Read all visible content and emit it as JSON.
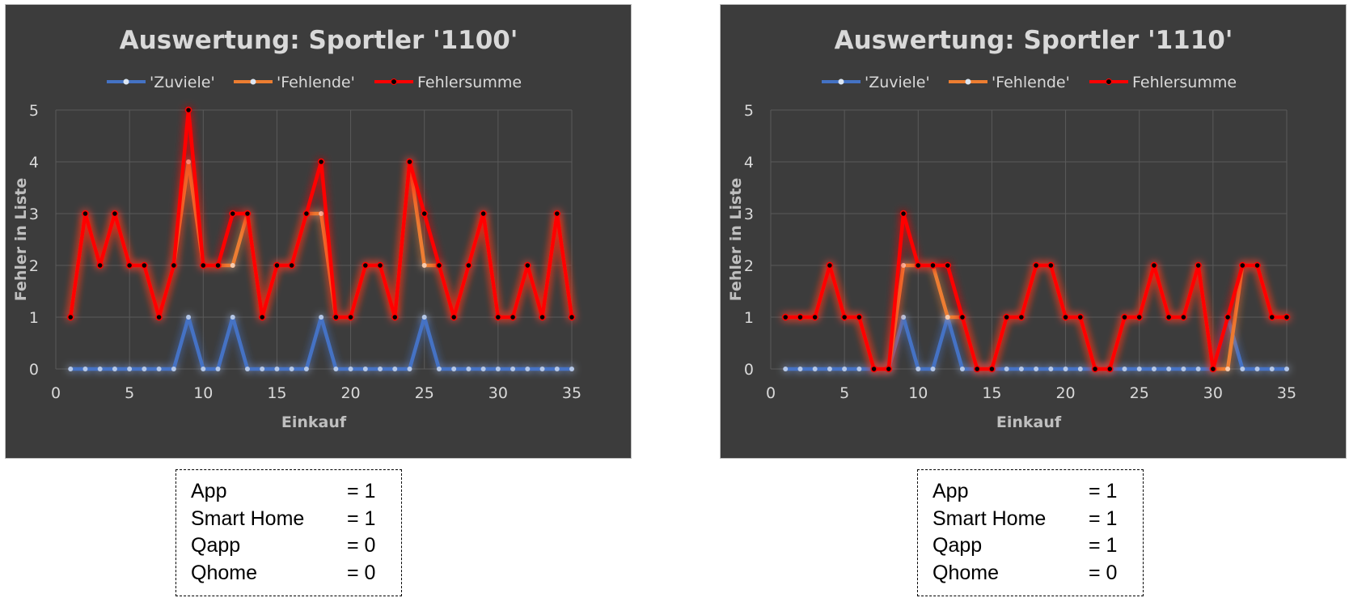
{
  "chart_data": [
    {
      "type": "line",
      "title": "Auswertung: Sportler '1100'",
      "xlabel": "Einkauf",
      "ylabel": "Fehler in Liste",
      "xlim": [
        0,
        35
      ],
      "ylim": [
        0,
        5
      ],
      "xticks": [
        0,
        5,
        10,
        15,
        20,
        25,
        30,
        35
      ],
      "yticks": [
        0,
        1,
        2,
        3,
        4,
        5
      ],
      "grid": true,
      "legend_position": "top",
      "x": [
        1,
        2,
        3,
        4,
        5,
        6,
        7,
        8,
        9,
        10,
        11,
        12,
        13,
        14,
        15,
        16,
        17,
        18,
        19,
        20,
        21,
        22,
        23,
        24,
        25,
        26,
        27,
        28,
        29,
        30,
        31,
        32,
        33,
        34,
        35
      ],
      "series": [
        {
          "name": "'Zuviele'",
          "color": "#4472c4",
          "values": [
            0,
            0,
            0,
            0,
            0,
            0,
            0,
            0,
            1,
            0,
            0,
            1,
            0,
            0,
            0,
            0,
            0,
            1,
            0,
            0,
            0,
            0,
            0,
            0,
            1,
            0,
            0,
            0,
            0,
            0,
            0,
            0,
            0,
            0,
            0
          ]
        },
        {
          "name": "'Fehlende'",
          "color": "#ed7d31",
          "values": [
            1,
            3,
            2,
            3,
            2,
            2,
            1,
            2,
            4,
            2,
            2,
            2,
            3,
            1,
            2,
            2,
            3,
            3,
            1,
            1,
            2,
            2,
            1,
            4,
            2,
            2,
            1,
            2,
            3,
            1,
            1,
            2,
            1,
            3,
            1
          ]
        },
        {
          "name": "Fehlersumme",
          "color": "#ff0000",
          "values": [
            1,
            3,
            2,
            3,
            2,
            2,
            1,
            2,
            5,
            2,
            2,
            3,
            3,
            1,
            2,
            2,
            3,
            4,
            1,
            1,
            2,
            2,
            1,
            4,
            3,
            2,
            1,
            2,
            3,
            1,
            1,
            2,
            1,
            3,
            1
          ]
        }
      ]
    },
    {
      "type": "line",
      "title": "Auswertung: Sportler '1110'",
      "xlabel": "Einkauf",
      "ylabel": "Fehler in Liste",
      "xlim": [
        0,
        35
      ],
      "ylim": [
        0,
        5
      ],
      "xticks": [
        0,
        5,
        10,
        15,
        20,
        25,
        30,
        35
      ],
      "yticks": [
        0,
        1,
        2,
        3,
        4,
        5
      ],
      "grid": true,
      "legend_position": "top",
      "x": [
        1,
        2,
        3,
        4,
        5,
        6,
        7,
        8,
        9,
        10,
        11,
        12,
        13,
        14,
        15,
        16,
        17,
        18,
        19,
        20,
        21,
        22,
        23,
        24,
        25,
        26,
        27,
        28,
        29,
        30,
        31,
        32,
        33,
        34,
        35
      ],
      "series": [
        {
          "name": "'Zuviele'",
          "color": "#4472c4",
          "values": [
            0,
            0,
            0,
            0,
            0,
            0,
            0,
            0,
            1,
            0,
            0,
            1,
            0,
            0,
            0,
            0,
            0,
            0,
            0,
            0,
            0,
            0,
            0,
            0,
            0,
            0,
            0,
            0,
            0,
            0,
            1,
            0,
            0,
            0,
            0
          ]
        },
        {
          "name": "'Fehlende'",
          "color": "#ed7d31",
          "values": [
            1,
            1,
            1,
            2,
            1,
            1,
            0,
            0,
            2,
            2,
            2,
            1,
            1,
            0,
            0,
            1,
            1,
            2,
            2,
            1,
            1,
            0,
            0,
            1,
            1,
            2,
            1,
            1,
            2,
            0,
            0,
            2,
            2,
            1,
            1
          ]
        },
        {
          "name": "Fehlersumme",
          "color": "#ff0000",
          "values": [
            1,
            1,
            1,
            2,
            1,
            1,
            0,
            0,
            3,
            2,
            2,
            2,
            1,
            0,
            0,
            1,
            1,
            2,
            2,
            1,
            1,
            0,
            0,
            1,
            1,
            2,
            1,
            1,
            2,
            0,
            1,
            2,
            2,
            1,
            1
          ]
        }
      ]
    }
  ],
  "parameter_boxes": [
    {
      "rows": [
        {
          "name": "App",
          "value": "= 1"
        },
        {
          "name": "Smart Home",
          "value": "= 1"
        },
        {
          "name": "Qapp",
          "value": "= 0"
        },
        {
          "name": "Qhome",
          "value": "= 0"
        }
      ]
    },
    {
      "rows": [
        {
          "name": "App",
          "value": "= 1"
        },
        {
          "name": "Smart Home",
          "value": "= 1"
        },
        {
          "name": "Qapp",
          "value": "= 1"
        },
        {
          "name": "Qhome",
          "value": "= 0"
        }
      ]
    }
  ]
}
